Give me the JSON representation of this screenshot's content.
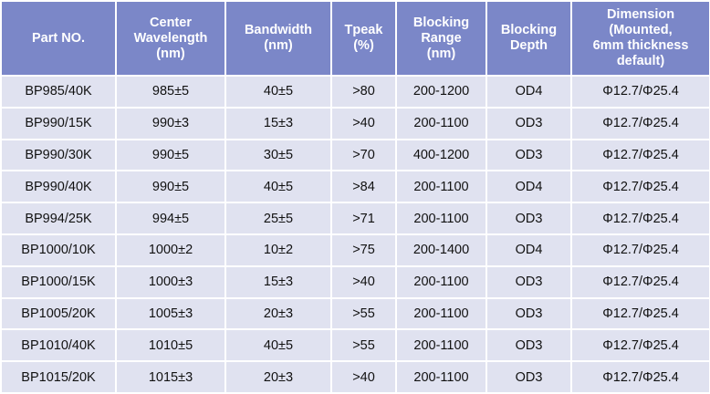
{
  "colors": {
    "header_bg": "#7b87c8",
    "row_bg": "#e0e2f0",
    "header_text": "#ffffff"
  },
  "headers": [
    [
      "Part NO."
    ],
    [
      "Center",
      "Wavelength",
      "(nm)"
    ],
    [
      "Bandwidth",
      "(nm)"
    ],
    [
      "Tpeak",
      "(%)"
    ],
    [
      "Blocking",
      "Range",
      "(nm)"
    ],
    [
      "Blocking",
      "Depth"
    ],
    [
      "Dimension",
      "(Mounted,",
      "6mm thickness",
      "default)"
    ]
  ],
  "rows": [
    [
      "BP985/40K",
      "985±5",
      "40±5",
      ">80",
      "200-1200",
      "OD4",
      "Φ12.7/Φ25.4"
    ],
    [
      "BP990/15K",
      "990±3",
      "15±3",
      ">40",
      "200-1100",
      "OD3",
      "Φ12.7/Φ25.4"
    ],
    [
      "BP990/30K",
      "990±5",
      "30±5",
      ">70",
      "400-1200",
      "OD3",
      "Φ12.7/Φ25.4"
    ],
    [
      "BP990/40K",
      "990±5",
      "40±5",
      ">84",
      "200-1100",
      "OD4",
      "Φ12.7/Φ25.4"
    ],
    [
      "BP994/25K",
      "994±5",
      "25±5",
      ">71",
      "200-1100",
      "OD3",
      "Φ12.7/Φ25.4"
    ],
    [
      "BP1000/10K",
      "1000±2",
      "10±2",
      ">75",
      "200-1400",
      "OD4",
      "Φ12.7/Φ25.4"
    ],
    [
      "BP1000/15K",
      "1000±3",
      "15±3",
      ">40",
      "200-1100",
      "OD3",
      "Φ12.7/Φ25.4"
    ],
    [
      "BP1005/20K",
      "1005±3",
      "20±3",
      ">55",
      "200-1100",
      "OD3",
      "Φ12.7/Φ25.4"
    ],
    [
      "BP1010/40K",
      "1010±5",
      "40±5",
      ">55",
      "200-1100",
      "OD3",
      "Φ12.7/Φ25.4"
    ],
    [
      "BP1015/20K",
      "1015±3",
      "20±3",
      ">40",
      "200-1100",
      "OD3",
      "Φ12.7/Φ25.4"
    ]
  ]
}
